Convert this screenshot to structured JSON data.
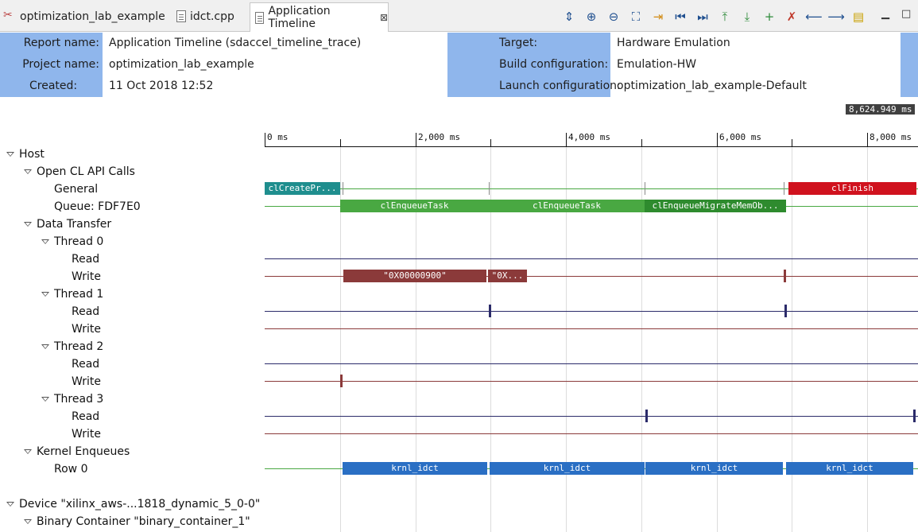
{
  "tabs": [
    {
      "label": "optimization_lab_example",
      "icon": "tools-icon",
      "active": false
    },
    {
      "label": "idct.cpp",
      "icon": "file-icon",
      "active": false
    },
    {
      "label": "Application Timeline",
      "icon": "timeline-doc-icon",
      "active": true
    }
  ],
  "toolbar": {
    "icons": [
      {
        "name": "expand-collapse-icon",
        "glyph": "⇕",
        "color": "blue"
      },
      {
        "name": "zoom-in-icon",
        "glyph": "⊕",
        "color": "blue"
      },
      {
        "name": "zoom-out-icon",
        "glyph": "⊖",
        "color": "blue"
      },
      {
        "name": "zoom-fit-icon",
        "glyph": "⛶",
        "color": "blue"
      },
      {
        "name": "add-marker-icon",
        "glyph": "⇥",
        "color": "orange"
      },
      {
        "name": "go-to-start-icon",
        "glyph": "⏮",
        "color": "blue"
      },
      {
        "name": "go-to-end-icon",
        "glyph": "⏭",
        "color": "blue"
      },
      {
        "name": "previous-event-icon",
        "glyph": "⤒",
        "color": "green"
      },
      {
        "name": "next-event-icon",
        "glyph": "⤓",
        "color": "green"
      },
      {
        "name": "add-cursor-icon",
        "glyph": "+",
        "color": "green"
      },
      {
        "name": "remove-marker-icon",
        "glyph": "✗",
        "color": "red"
      },
      {
        "name": "previous-marker-icon",
        "glyph": "⟵",
        "color": "blue"
      },
      {
        "name": "next-marker-icon",
        "glyph": "⟶",
        "color": "blue"
      },
      {
        "name": "show-ruler-icon",
        "glyph": "▤",
        "color": "yellow"
      }
    ],
    "minimize_icon": "minimize-icon",
    "maximize_icon": "maximize-icon"
  },
  "report": {
    "report_name_label": "Report name:",
    "report_name": "Application Timeline (sdaccel_timeline_trace)",
    "project_name_label": "Project name:",
    "project_name": "optimization_lab_example",
    "created_label": "Created:",
    "created": "11 Oct 2018 12:52",
    "target_label": "Target:",
    "target": "Hardware Emulation",
    "build_config_label": "Build configuration:",
    "build_config": "Emulation-HW",
    "launch_config_label": "Launch configuration:",
    "launch_config": "optimization_lab_example-Default",
    "collapse_glyph": "-"
  },
  "cursor_readout": "8,624.949 ms",
  "ruler": {
    "ticks": [
      "0 ms",
      "2,000 ms",
      "4,000 ms",
      "6,000 ms",
      "8,000 ms"
    ]
  },
  "colors": {
    "label_bg": "#8fb6ec",
    "teal": "#1f8e8e",
    "green": "#49a842",
    "dark_green": "#2e8b2e",
    "red": "#d0121e",
    "maroon": "#8b3a3a",
    "blue": "#2a6fc4",
    "navy": "#2b2b6a"
  },
  "tree": [
    {
      "label": "Host",
      "level": 0,
      "expanded": true,
      "row": 0
    },
    {
      "label": "Open CL API Calls",
      "level": 1,
      "expanded": true,
      "row": 1
    },
    {
      "label": "General",
      "level": 2,
      "expanded": null,
      "row": 2
    },
    {
      "label": "Queue: FDF7E0",
      "level": 2,
      "expanded": null,
      "row": 3
    },
    {
      "label": "Data Transfer",
      "level": 1,
      "expanded": true,
      "row": 4
    },
    {
      "label": "Thread 0",
      "level": 2,
      "expanded": true,
      "row": 5
    },
    {
      "label": "Read",
      "level": 3,
      "expanded": null,
      "row": 6
    },
    {
      "label": "Write",
      "level": 3,
      "expanded": null,
      "row": 7
    },
    {
      "label": "Thread 1",
      "level": 2,
      "expanded": true,
      "row": 8
    },
    {
      "label": "Read",
      "level": 3,
      "expanded": null,
      "row": 9
    },
    {
      "label": "Write",
      "level": 3,
      "expanded": null,
      "row": 10
    },
    {
      "label": "Thread 2",
      "level": 2,
      "expanded": true,
      "row": 11
    },
    {
      "label": "Read",
      "level": 3,
      "expanded": null,
      "row": 12
    },
    {
      "label": "Write",
      "level": 3,
      "expanded": null,
      "row": 13
    },
    {
      "label": "Thread 3",
      "level": 2,
      "expanded": true,
      "row": 14
    },
    {
      "label": "Read",
      "level": 3,
      "expanded": null,
      "row": 15
    },
    {
      "label": "Write",
      "level": 3,
      "expanded": null,
      "row": 16
    },
    {
      "label": "Kernel Enqueues",
      "level": 1,
      "expanded": true,
      "row": 17
    },
    {
      "label": "Row 0",
      "level": 2,
      "expanded": null,
      "row": 18
    },
    {
      "label": "Device \"xilinx_aws-...1818_dynamic_5_0-0\"",
      "level": 0,
      "expanded": true,
      "row": 20
    },
    {
      "label": "Binary Container \"binary_container_1\"",
      "level": 1,
      "expanded": true,
      "row": 21
    }
  ],
  "lanes": [
    {
      "row": 2,
      "color": "green",
      "events": [
        {
          "start_ms": 0,
          "end_ms": 1000,
          "label": "clCreatePr...",
          "color": "teal"
        },
        {
          "start_ms": 6950,
          "end_ms": 8780,
          "label": "clFinish",
          "color": "red"
        }
      ],
      "markers_ms": [
        1030,
        2980,
        5050,
        6890
      ]
    },
    {
      "row": 3,
      "color": "green",
      "events": [
        {
          "start_ms": 1000,
          "end_ms": 2980,
          "label": "clEnqueueTask",
          "color": "green"
        },
        {
          "start_ms": 2980,
          "end_ms": 5040,
          "label": "clEnqueueTask",
          "color": "green"
        },
        {
          "start_ms": 5050,
          "end_ms": 6920,
          "label": "clEnqueueMigrateMemOb...",
          "color": "dark_green"
        }
      ],
      "markers_ms": []
    },
    {
      "row": 6,
      "color": "navy",
      "events": [],
      "markers_ms": []
    },
    {
      "row": 7,
      "color": "maroon",
      "events": [
        {
          "start_ms": 1050,
          "end_ms": 2940,
          "label": "\"0X00000900\"",
          "color": "maroon"
        },
        {
          "start_ms": 2970,
          "end_ms": 3480,
          "label": "\"0X...",
          "color": "maroon"
        }
      ],
      "ticks_ms": [
        6890
      ]
    },
    {
      "row": 9,
      "color": "navy",
      "events": [],
      "ticks_ms": [
        2980,
        6900
      ]
    },
    {
      "row": 10,
      "color": "maroon",
      "events": [],
      "ticks_ms": []
    },
    {
      "row": 12,
      "color": "navy",
      "events": [],
      "ticks_ms": []
    },
    {
      "row": 13,
      "color": "maroon",
      "events": [],
      "ticks_ms": [
        1000
      ]
    },
    {
      "row": 15,
      "color": "navy",
      "events": [],
      "ticks_ms": [
        5060,
        8610
      ]
    },
    {
      "row": 16,
      "color": "maroon",
      "events": [],
      "ticks_ms": []
    },
    {
      "row": 18,
      "color": "green",
      "events": [
        {
          "start_ms": 1030,
          "end_ms": 2960,
          "label": "krnl_idct",
          "color": "blue"
        },
        {
          "start_ms": 2990,
          "end_ms": 5040,
          "label": "krnl_idct",
          "color": "blue"
        },
        {
          "start_ms": 5060,
          "end_ms": 6880,
          "label": "krnl_idct",
          "color": "blue"
        },
        {
          "start_ms": 6920,
          "end_ms": 8610,
          "label": "krnl_idct",
          "color": "blue"
        }
      ],
      "markers_ms": []
    }
  ]
}
